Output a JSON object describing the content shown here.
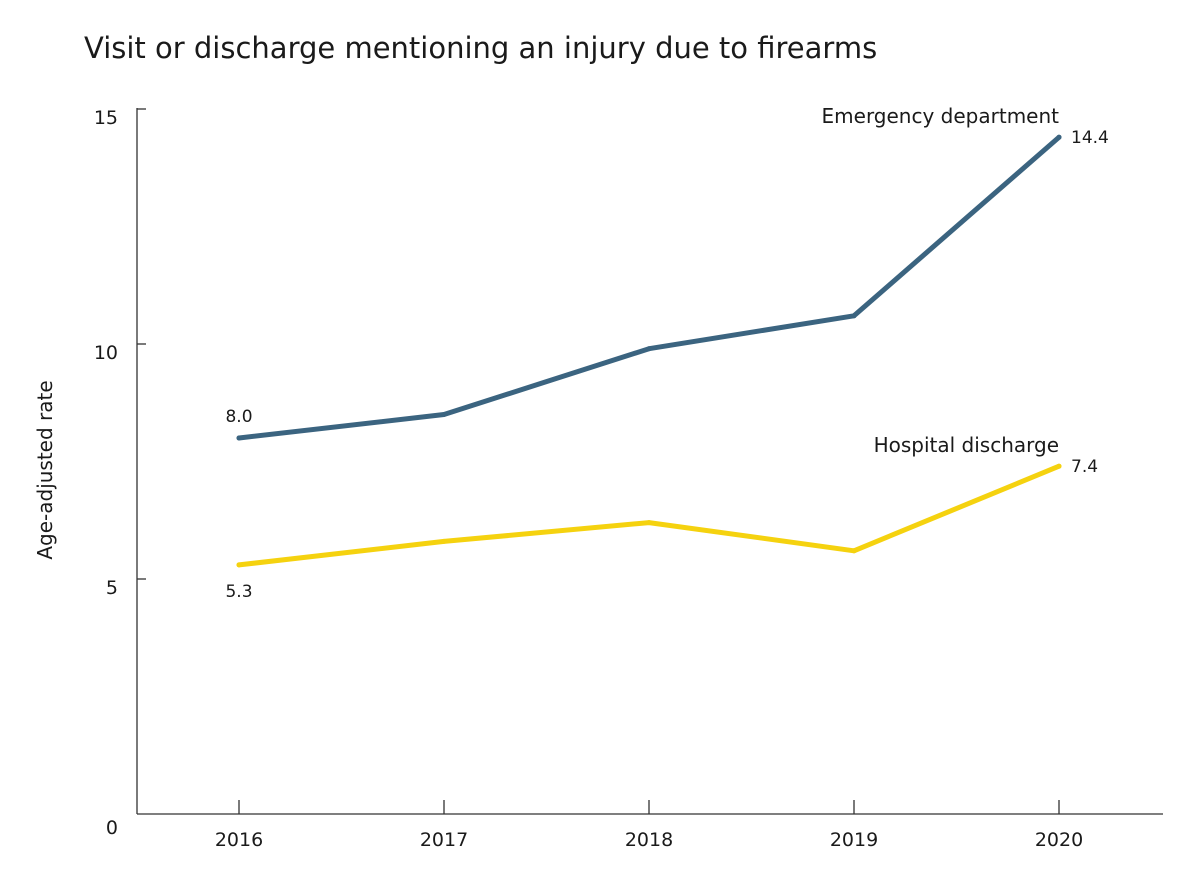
{
  "chart_data": {
    "type": "line",
    "title": "Visit or discharge mentioning an injury due to firearms",
    "xlabel": "",
    "ylabel": "Age-adjusted rate",
    "categories": [
      "2016",
      "2017",
      "2018",
      "2019",
      "2020"
    ],
    "ylim": [
      0,
      15
    ],
    "yticks": [
      {
        "value": 0,
        "label": "0"
      },
      {
        "value": 5,
        "label": "5"
      },
      {
        "value": 10,
        "label": "10"
      },
      {
        "value": 15,
        "label": "15"
      }
    ],
    "grid": false,
    "legend": "none",
    "series": [
      {
        "name": "Emergency department",
        "color": "#3b6480",
        "values": [
          8.0,
          8.5,
          9.9,
          10.6,
          14.4
        ],
        "labels": {
          "first": "8.0",
          "last": "14.4"
        }
      },
      {
        "name": "Hospital discharge",
        "color": "#f5d20f",
        "values": [
          5.3,
          5.8,
          6.2,
          5.6,
          7.4
        ],
        "labels": {
          "first": "5.3",
          "last": "7.4"
        }
      }
    ]
  }
}
